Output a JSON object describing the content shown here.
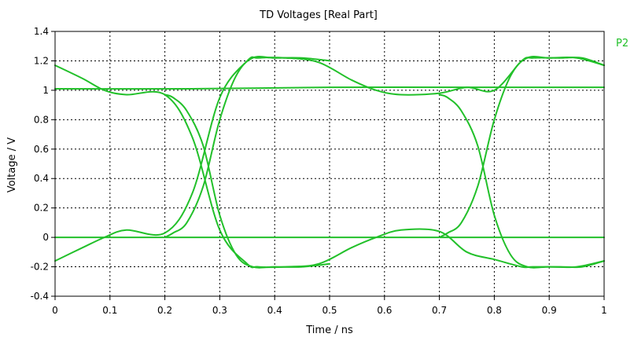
{
  "chart_data": {
    "type": "line",
    "title": "TD Voltages [Real Part]",
    "xlabel": "Time / ns",
    "ylabel": "Voltage / V",
    "xlim": [
      0,
      1
    ],
    "ylim": [
      -0.4,
      1.4
    ],
    "x_ticks": [
      "0",
      "0.1",
      "0.2",
      "0.3",
      "0.4",
      "0.5",
      "0.6",
      "0.7",
      "0.8",
      "0.9",
      "1"
    ],
    "y_ticks": [
      "-0.4",
      "-0.2",
      "0",
      "0.2",
      "0.4",
      "0.6",
      "0.8",
      "1",
      "1.2",
      "1.4"
    ],
    "grid": true,
    "legend_position": "right",
    "color": "#22c02a",
    "series": [
      {
        "name": "P2",
        "traces": [
          {
            "x": [
              0,
              0.05,
              0.09,
              0.13,
              0.2,
              0.25,
              0.3,
              0.35,
              0.37,
              0.42,
              0.48,
              0.54,
              0.585,
              0.63,
              0.7,
              0.75,
              0.8,
              0.85,
              0.87,
              0.92,
              0.96,
              1.0
            ],
            "y": [
              1.17,
              1.08,
              1.0,
              0.97,
              0.97,
              0.68,
              0.05,
              -0.18,
              -0.2,
              -0.2,
              -0.18,
              -0.07,
              0.0,
              0.05,
              0.04,
              -0.1,
              -0.15,
              -0.2,
              -0.2,
              -0.2,
              -0.2,
              -0.16
            ]
          },
          {
            "x": [
              0,
              0.05,
              0.09,
              0.13,
              0.2,
              0.25,
              0.3,
              0.35,
              0.37,
              0.42,
              0.48,
              0.54,
              0.585,
              0.63,
              0.7,
              0.75,
              0.8,
              0.85,
              0.87,
              0.92,
              0.96,
              1.0
            ],
            "y": [
              -0.16,
              -0.07,
              0.0,
              0.05,
              0.03,
              0.3,
              0.95,
              1.2,
              1.22,
              1.22,
              1.19,
              1.07,
              1.0,
              0.97,
              0.98,
              1.02,
              1.0,
              1.2,
              1.22,
              1.22,
              1.22,
              1.17
            ]
          },
          {
            "x": [
              0.2,
              0.215,
              0.24,
              0.27,
              0.3,
              0.33,
              0.36,
              0.4,
              0.45,
              0.5
            ],
            "y": [
              0.0,
              0.03,
              0.1,
              0.35,
              0.8,
              1.1,
              1.22,
              1.22,
              1.22,
              1.2
            ]
          },
          {
            "x": [
              0.2,
              0.215,
              0.24,
              0.27,
              0.3,
              0.33,
              0.36,
              0.4,
              0.45,
              0.5
            ],
            "y": [
              0.97,
              0.95,
              0.86,
              0.62,
              0.15,
              -0.12,
              -0.2,
              -0.2,
              -0.2,
              -0.18
            ]
          },
          {
            "x": [
              0.7,
              0.715,
              0.74,
              0.77,
              0.8,
              0.83,
              0.86,
              0.9,
              0.95,
              1.0
            ],
            "y": [
              0.0,
              0.03,
              0.1,
              0.35,
              0.8,
              1.1,
              1.22,
              1.22,
              1.22,
              1.17
            ]
          },
          {
            "x": [
              0.7,
              0.715,
              0.74,
              0.77,
              0.8,
              0.83,
              0.86,
              0.9,
              0.95,
              1.0
            ],
            "y": [
              0.97,
              0.95,
              0.86,
              0.62,
              0.15,
              -0.12,
              -0.2,
              -0.2,
              -0.2,
              -0.16
            ]
          },
          {
            "x": [
              0,
              0.25,
              0.5,
              0.75,
              1.0
            ],
            "y": [
              1.01,
              1.01,
              1.02,
              1.02,
              1.02
            ]
          },
          {
            "x": [
              0,
              0.25,
              0.5,
              0.75,
              1.0
            ],
            "y": [
              0.0,
              0.0,
              0.0,
              0.0,
              0.0
            ]
          }
        ]
      }
    ]
  }
}
